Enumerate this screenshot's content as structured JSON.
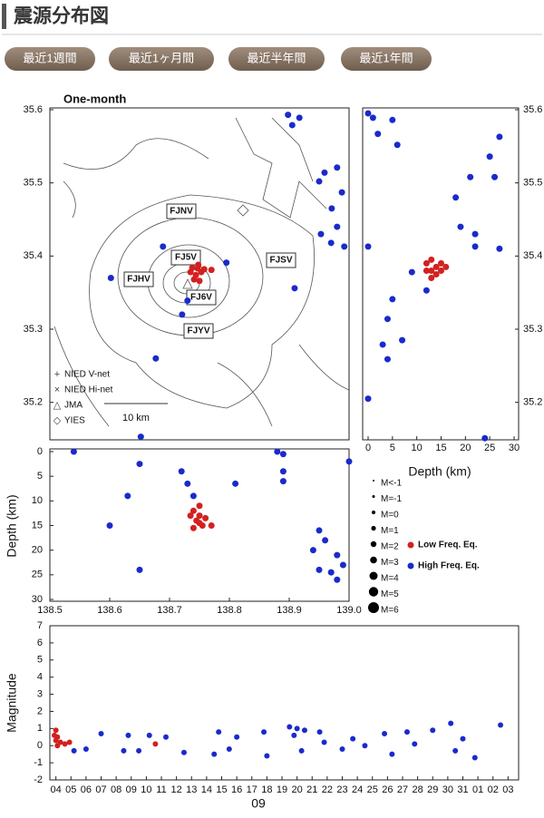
{
  "header": {
    "title": "震源分布図"
  },
  "buttons": [
    "最近1週間",
    "最近1ヶ月間",
    "最近半年間",
    "最近1年間"
  ],
  "magnitude_legend": [
    "M<-1",
    "M=-1",
    "M=0",
    "M=1",
    "M=2",
    "M=3",
    "M=4",
    "M=5",
    "M=6"
  ],
  "chart_data": [
    {
      "type": "map",
      "title": "One-month",
      "xlim": [
        138.5,
        139.0
      ],
      "ylim": [
        35.15,
        35.6
      ],
      "yticks": [
        35.2,
        35.3,
        35.4,
        35.5,
        35.6
      ],
      "stations": [
        "FJNV",
        "FJ5V",
        "FJHV",
        "FJSV",
        "FJ6V",
        "FJYV"
      ],
      "networks": [
        "NIED V-net",
        "NIED Hi-net",
        "JMA",
        "YIES"
      ],
      "scale_label": "10 km",
      "series": [
        {
          "color": "#d42020",
          "x": [
            138.738,
            138.747,
            138.753,
            138.744,
            138.735,
            138.758,
            138.748,
            138.741,
            138.77,
            138.75
          ],
          "values": [
            35.384,
            35.383,
            35.378,
            35.374,
            35.378,
            35.382,
            35.388,
            35.368,
            35.381,
            35.366
          ]
        },
        {
          "color": "#1a2acc",
          "x": [
            138.898,
            138.905,
            138.917,
            138.95,
            138.959,
            138.98,
            138.988,
            138.971,
            138.953,
            138.97,
            138.992,
            138.98,
            138.602,
            138.689,
            138.73,
            138.721,
            138.677,
            138.909,
            138.795,
            138.652
          ],
          "values": [
            35.593,
            35.579,
            35.589,
            35.502,
            35.514,
            35.521,
            35.487,
            35.465,
            35.43,
            35.418,
            35.413,
            35.44,
            35.37,
            35.413,
            35.339,
            35.32,
            35.26,
            35.356,
            35.391,
            35.153
          ]
        }
      ]
    },
    {
      "type": "scatter",
      "xlabel": "Depth (km)",
      "xlim": [
        0,
        30
      ],
      "ylim": [
        35.15,
        35.6
      ],
      "xticks": [
        0,
        5,
        10,
        15,
        20,
        25,
        30
      ],
      "yticks": [
        35.2,
        35.3,
        35.4,
        35.5,
        35.6
      ],
      "series": [
        {
          "color": "#d42020",
          "x": [
            12,
            13,
            14,
            15,
            13,
            14,
            15,
            12,
            13,
            16
          ],
          "values": [
            35.39,
            35.38,
            35.385,
            35.39,
            35.395,
            35.375,
            35.38,
            35.38,
            35.37,
            35.385
          ]
        },
        {
          "color": "#1a2acc",
          "x": [
            0,
            1,
            2,
            5,
            6,
            21,
            26,
            27,
            25,
            18,
            19,
            22,
            22,
            27,
            0,
            9,
            5,
            4,
            3,
            4,
            7,
            0,
            24,
            12
          ],
          "values": [
            35.595,
            35.589,
            35.567,
            35.586,
            35.552,
            35.508,
            35.508,
            35.563,
            35.536,
            35.48,
            35.44,
            35.43,
            35.413,
            35.41,
            35.413,
            35.378,
            35.341,
            35.314,
            35.279,
            35.259,
            35.285,
            35.205,
            35.151,
            35.353
          ]
        }
      ]
    },
    {
      "type": "scatter",
      "ylabel": "Depth (km)",
      "xlim": [
        138.5,
        139.0
      ],
      "ylim": [
        0,
        30
      ],
      "y_reversed": true,
      "xticks": [
        138.5,
        138.6,
        138.7,
        138.8,
        138.9,
        {
          "value": 139,
          "label": "139.0"
        }
      ],
      "yticks": [
        0,
        5,
        10,
        15,
        20,
        25,
        30
      ],
      "series": [
        {
          "name": "Low Freq. Eq.",
          "color": "#d42020",
          "x": [
            138.74,
            138.75,
            138.745,
            138.755,
            138.74,
            138.75,
            138.76,
            138.735,
            138.75,
            138.77
          ],
          "values": [
            12,
            13,
            14,
            15,
            15.5,
            11,
            13.5,
            13,
            14.5,
            15
          ]
        },
        {
          "name": "High Freq. Eq.",
          "color": "#1a2acc",
          "x": [
            138.54,
            138.65,
            138.63,
            138.6,
            138.65,
            138.72,
            138.73,
            138.74,
            138.81,
            138.88,
            138.89,
            138.89,
            138.89,
            138.95,
            138.96,
            138.94,
            138.98,
            138.99,
            138.95,
            138.98,
            138.97,
            139.0
          ],
          "values": [
            0,
            2.5,
            9,
            15,
            24,
            4,
            6.5,
            9,
            6.5,
            0,
            0.5,
            4,
            6,
            16,
            18,
            20,
            21,
            23,
            24,
            26,
            24.5,
            2
          ]
        }
      ]
    },
    {
      "type": "scatter",
      "ylabel": "Magnitude",
      "xlabel": "09",
      "xlim": [
        -0.4,
        30.7
      ],
      "ylim": [
        -2,
        7
      ],
      "yticks": [
        -2,
        -1,
        0,
        1,
        2,
        3,
        4,
        5,
        6,
        7
      ],
      "xticks": [
        {
          "value": 0,
          "label": "04"
        },
        {
          "value": 1,
          "label": "05"
        },
        {
          "value": 2,
          "label": "06"
        },
        {
          "value": 3,
          "label": "07"
        },
        {
          "value": 4,
          "label": "08"
        },
        {
          "value": 5,
          "label": "09"
        },
        {
          "value": 6,
          "label": "10"
        },
        {
          "value": 7,
          "label": "11"
        },
        {
          "value": 8,
          "label": "12"
        },
        {
          "value": 9,
          "label": "13"
        },
        {
          "value": 10,
          "label": "14"
        },
        {
          "value": 11,
          "label": "15"
        },
        {
          "value": 12,
          "label": "16"
        },
        {
          "value": 13,
          "label": "17"
        },
        {
          "value": 14,
          "label": "18"
        },
        {
          "value": 15,
          "label": "19"
        },
        {
          "value": 16,
          "label": "20"
        },
        {
          "value": 17,
          "label": "21"
        },
        {
          "value": 18,
          "label": "22"
        },
        {
          "value": 19,
          "label": "23"
        },
        {
          "value": 20,
          "label": "24"
        },
        {
          "value": 21,
          "label": "25"
        },
        {
          "value": 22,
          "label": "26"
        },
        {
          "value": 23,
          "label": "27"
        },
        {
          "value": 24,
          "label": "28"
        },
        {
          "value": 25,
          "label": "29"
        },
        {
          "value": 26,
          "label": "30"
        },
        {
          "value": 27,
          "label": "31"
        },
        {
          "value": 28,
          "label": "01"
        },
        {
          "value": 29,
          "label": "02"
        },
        {
          "value": 30,
          "label": "03"
        }
      ],
      "series": [
        {
          "color": "#d42020",
          "x": [
            -0.1,
            0,
            0.1,
            0,
            0.3,
            0.6,
            0.9,
            0.1,
            6.6
          ],
          "values": [
            0.6,
            0.3,
            0,
            0.9,
            0.2,
            0.1,
            0.2,
            0.5,
            0.1
          ]
        },
        {
          "color": "#1a2acc",
          "x": [
            1.2,
            2,
            3,
            4.5,
            4.8,
            5.5,
            6.2,
            7.3,
            8.5,
            10.5,
            10.8,
            11.5,
            12,
            13.8,
            14,
            15.5,
            15.8,
            16.3,
            17.5,
            17.8,
            19,
            19.7,
            20.5,
            21.8,
            22.3,
            23.3,
            23.8,
            25,
            26.2,
            26.5,
            27,
            27.8,
            29.5,
            16,
            16.5
          ],
          "values": [
            -0.3,
            -0.2,
            0.7,
            -0.3,
            0.6,
            -0.3,
            0.6,
            0.5,
            -0.4,
            -0.5,
            0.8,
            -0.2,
            0.5,
            0.8,
            -0.6,
            1.1,
            0.6,
            -0.3,
            0.8,
            0.2,
            -0.2,
            0.4,
            0,
            0.7,
            -0.5,
            0.8,
            0.1,
            0.9,
            1.3,
            -0.3,
            0.4,
            -0.7,
            1.2,
            1.0,
            0.9
          ]
        }
      ]
    }
  ]
}
